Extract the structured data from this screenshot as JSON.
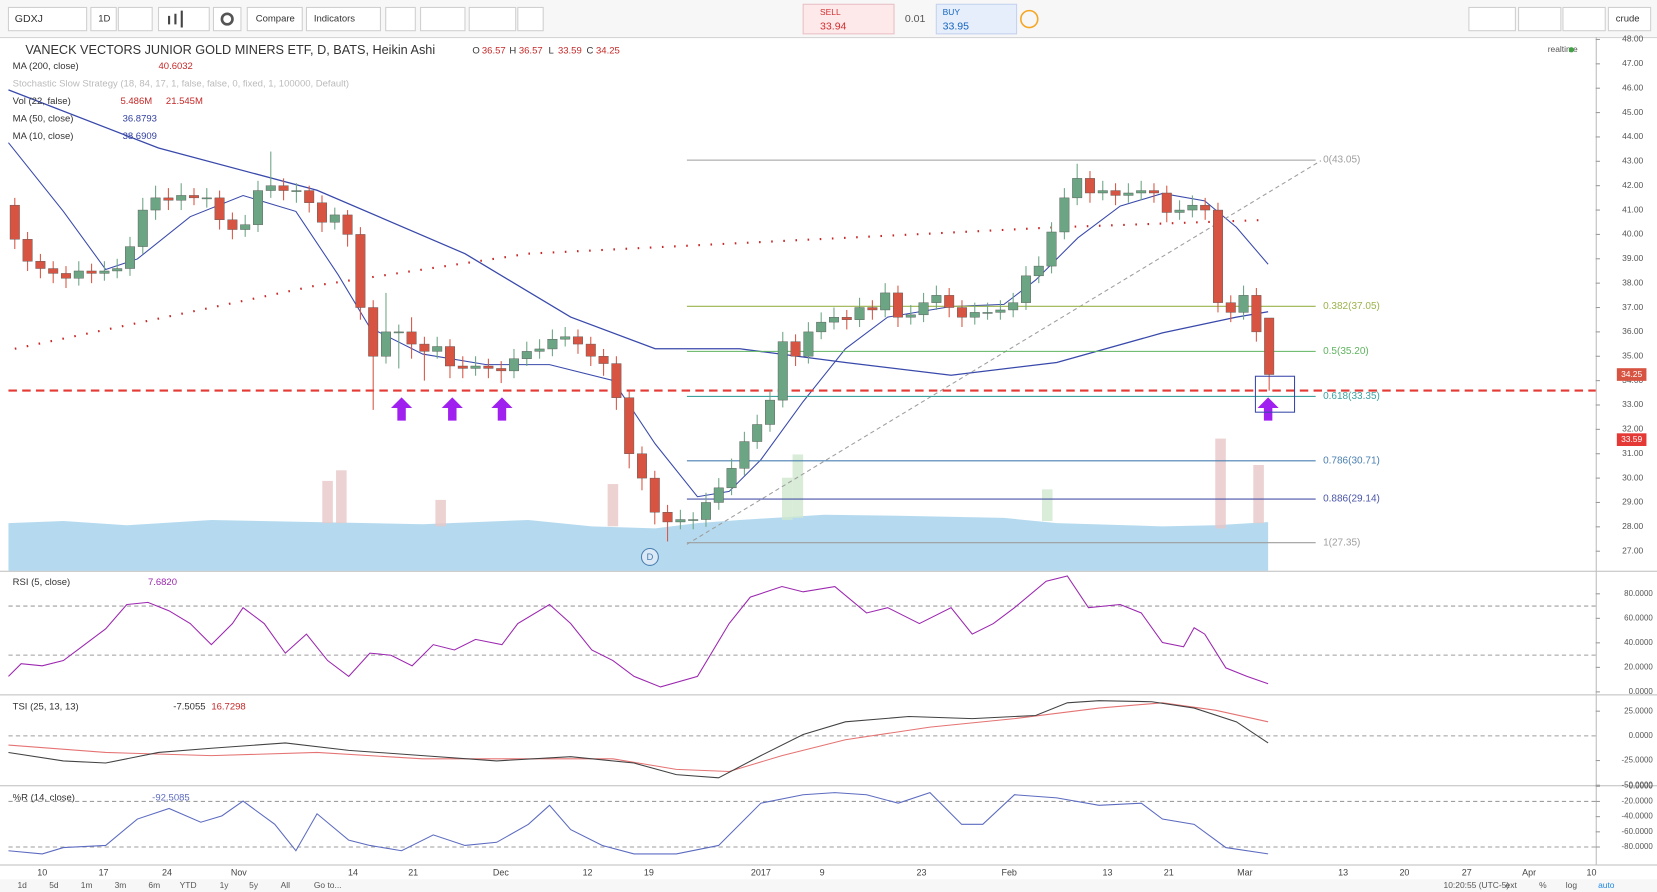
{
  "toolbar": {
    "symbol": "GDXJ",
    "interval": "1D",
    "compare": "Compare",
    "indicators": "Indicators",
    "sell": "SELL",
    "sell_price": 33.94,
    "spread": 0.01,
    "buy": "BUY",
    "buy_price": 33.95,
    "user": "crude"
  },
  "chart_data": {
    "type": "candlestick",
    "title": "VANECK VECTORS JUNIOR GOLD MINERS ETF, D, BATS, Heikin Ashi",
    "ohlc": [
      [
        "O",
        36.57
      ],
      [
        "H",
        36.57
      ],
      [
        "L",
        33.59
      ],
      [
        "C",
        34.25
      ]
    ],
    "realtime": "realtime",
    "studies": [
      {
        "name": "MA (200, close)",
        "values": [
          "40.6032"
        ],
        "color": "#c62828"
      },
      {
        "name": "Stochastic Slow Strategy (18, 84, 17, 1, false, false, 0, fixed, 1, 100000, Default)",
        "values": [],
        "color": "#bbbbbb"
      },
      {
        "name": "Vol (22, false)",
        "values": [
          "5.486M",
          "21.545M"
        ],
        "color": "#c62828"
      },
      {
        "name": "MA (50, close)",
        "values": [
          "36.8793"
        ],
        "color": "#303f9f"
      },
      {
        "name": "MA (10, close)",
        "values": [
          "38.6909"
        ],
        "color": "#303f9f"
      }
    ],
    "up_color": "#6ba583",
    "down_color": "#d75442",
    "ylim": [
      26.2,
      48.1
    ],
    "yticks": [
      {
        "value": 27,
        "label": "27.00"
      },
      {
        "value": 28,
        "label": "28.00"
      },
      {
        "value": 29,
        "label": "29.00"
      },
      {
        "value": 30,
        "label": "30.00"
      },
      {
        "value": 31,
        "label": "31.00"
      },
      {
        "value": 32,
        "label": "32.00"
      },
      {
        "value": 33,
        "label": "33.00"
      },
      {
        "value": 34,
        "label": "34.00"
      },
      {
        "value": 35,
        "label": "35.00"
      },
      {
        "value": 36,
        "label": "36.00"
      },
      {
        "value": 37,
        "label": "37.00"
      },
      {
        "value": 38,
        "label": "38.00"
      },
      {
        "value": 39,
        "label": "39.00"
      },
      {
        "value": 40,
        "label": "40.00"
      },
      {
        "value": 41,
        "label": "41.00"
      },
      {
        "value": 42,
        "label": "42.00"
      },
      {
        "value": 43,
        "label": "43.00"
      },
      {
        "value": 44,
        "label": "44.00"
      },
      {
        "value": 45,
        "label": "45.00"
      },
      {
        "value": 46,
        "label": "46.00"
      },
      {
        "value": 47,
        "label": "47.00"
      },
      {
        "value": 48,
        "label": "48.00"
      }
    ],
    "last_price": {
      "value": 34.25,
      "label": "34.25"
    },
    "low_badge": {
      "value": 33.59,
      "label": "33.59"
    },
    "support_line": 33.59,
    "candles": [
      [
        41.2,
        41.5,
        39.4,
        39.8
      ],
      [
        39.8,
        40.1,
        38.5,
        38.9
      ],
      [
        38.9,
        39.2,
        38.2,
        38.6
      ],
      [
        38.6,
        38.9,
        38.0,
        38.4
      ],
      [
        38.4,
        38.7,
        37.8,
        38.2
      ],
      [
        38.2,
        38.9,
        37.9,
        38.5
      ],
      [
        38.5,
        38.8,
        38.0,
        38.4
      ],
      [
        38.4,
        38.9,
        38.1,
        38.5
      ],
      [
        38.5,
        39.0,
        38.2,
        38.6
      ],
      [
        38.6,
        39.9,
        38.3,
        39.5
      ],
      [
        39.5,
        41.5,
        39.2,
        41.0
      ],
      [
        41.0,
        42.0,
        40.6,
        41.5
      ],
      [
        41.5,
        41.9,
        41.0,
        41.4
      ],
      [
        41.4,
        42.1,
        41.0,
        41.6
      ],
      [
        41.6,
        41.9,
        41.2,
        41.5
      ],
      [
        41.5,
        41.9,
        41.1,
        41.5
      ],
      [
        41.5,
        41.8,
        40.2,
        40.6
      ],
      [
        40.6,
        40.9,
        39.8,
        40.2
      ],
      [
        40.2,
        40.8,
        39.9,
        40.4
      ],
      [
        40.4,
        42.2,
        40.1,
        41.8
      ],
      [
        41.8,
        43.4,
        41.5,
        42.0
      ],
      [
        42.0,
        42.3,
        41.4,
        41.8
      ],
      [
        41.8,
        42.1,
        41.3,
        41.8
      ],
      [
        41.8,
        42.0,
        40.9,
        41.3
      ],
      [
        41.3,
        41.6,
        40.1,
        40.5
      ],
      [
        40.5,
        41.1,
        40.2,
        40.8
      ],
      [
        40.8,
        41.0,
        39.5,
        40.0
      ],
      [
        40.0,
        40.3,
        36.5,
        37.0
      ],
      [
        37.0,
        37.3,
        32.8,
        35.0
      ],
      [
        35.0,
        37.6,
        34.7,
        36.0
      ],
      [
        36.0,
        36.3,
        34.5,
        36.0
      ],
      [
        36.0,
        36.6,
        34.9,
        35.5
      ],
      [
        35.5,
        35.8,
        34.0,
        35.2
      ],
      [
        35.2,
        35.8,
        34.9,
        35.4
      ],
      [
        35.4,
        35.7,
        34.1,
        34.6
      ],
      [
        34.6,
        35.0,
        34.1,
        34.5
      ],
      [
        34.5,
        35.0,
        34.2,
        34.6
      ],
      [
        34.6,
        34.9,
        34.1,
        34.5
      ],
      [
        34.5,
        34.8,
        33.9,
        34.4
      ],
      [
        34.4,
        35.3,
        34.1,
        34.9
      ],
      [
        34.9,
        35.6,
        34.6,
        35.2
      ],
      [
        35.2,
        35.7,
        34.9,
        35.3
      ],
      [
        35.3,
        36.1,
        35.0,
        35.7
      ],
      [
        35.7,
        36.2,
        35.4,
        35.8
      ],
      [
        35.8,
        36.1,
        35.1,
        35.5
      ],
      [
        35.5,
        35.8,
        34.6,
        35.0
      ],
      [
        35.0,
        35.3,
        34.2,
        34.7
      ],
      [
        34.7,
        35.0,
        32.8,
        33.3
      ],
      [
        33.3,
        33.6,
        30.4,
        31.0
      ],
      [
        31.0,
        31.3,
        29.5,
        30.0
      ],
      [
        30.0,
        30.3,
        28.1,
        28.6
      ],
      [
        28.6,
        28.9,
        27.4,
        28.2
      ],
      [
        28.2,
        28.7,
        27.9,
        28.3
      ],
      [
        28.3,
        28.6,
        27.9,
        28.3
      ],
      [
        28.3,
        29.4,
        28.0,
        29.0
      ],
      [
        29.0,
        30.0,
        28.7,
        29.6
      ],
      [
        29.6,
        30.8,
        29.3,
        30.4
      ],
      [
        30.4,
        31.9,
        30.1,
        31.5
      ],
      [
        31.5,
        32.6,
        31.2,
        32.2
      ],
      [
        32.2,
        33.6,
        31.9,
        33.2
      ],
      [
        33.2,
        36.0,
        32.9,
        35.6
      ],
      [
        35.6,
        35.9,
        34.6,
        35.0
      ],
      [
        35.0,
        36.4,
        34.7,
        36.0
      ],
      [
        36.0,
        36.8,
        35.7,
        36.4
      ],
      [
        36.4,
        37.0,
        36.1,
        36.6
      ],
      [
        36.6,
        36.9,
        36.1,
        36.5
      ],
      [
        36.5,
        37.4,
        36.2,
        37.0
      ],
      [
        37.0,
        37.3,
        36.5,
        36.9
      ],
      [
        36.9,
        38.0,
        36.6,
        37.6
      ],
      [
        37.6,
        37.9,
        36.2,
        36.6
      ],
      [
        36.6,
        37.1,
        36.3,
        36.7
      ],
      [
        36.7,
        37.6,
        36.4,
        37.2
      ],
      [
        37.2,
        37.9,
        36.9,
        37.5
      ],
      [
        37.5,
        37.8,
        36.6,
        37.0
      ],
      [
        37.0,
        37.3,
        36.2,
        36.6
      ],
      [
        36.6,
        37.2,
        36.3,
        36.8
      ],
      [
        36.8,
        37.2,
        36.5,
        36.8
      ],
      [
        36.8,
        37.3,
        36.5,
        36.9
      ],
      [
        36.9,
        37.6,
        36.6,
        37.2
      ],
      [
        37.2,
        38.7,
        36.9,
        38.3
      ],
      [
        38.3,
        39.1,
        38.0,
        38.7
      ],
      [
        38.7,
        40.5,
        38.4,
        40.1
      ],
      [
        40.1,
        41.9,
        39.8,
        41.5
      ],
      [
        41.5,
        42.9,
        41.2,
        42.3
      ],
      [
        42.3,
        42.6,
        41.3,
        41.7
      ],
      [
        41.7,
        42.2,
        41.4,
        41.8
      ],
      [
        41.8,
        42.1,
        41.2,
        41.6
      ],
      [
        41.6,
        42.1,
        41.3,
        41.7
      ],
      [
        41.7,
        42.2,
        41.4,
        41.8
      ],
      [
        41.8,
        42.1,
        41.3,
        41.7
      ],
      [
        41.7,
        42.0,
        40.5,
        40.9
      ],
      [
        40.9,
        41.4,
        40.6,
        41.0
      ],
      [
        41.0,
        41.6,
        40.7,
        41.2
      ],
      [
        41.2,
        41.5,
        40.6,
        41.0
      ],
      [
        41.0,
        41.3,
        36.8,
        37.2
      ],
      [
        37.2,
        37.5,
        36.4,
        36.8
      ],
      [
        36.8,
        37.9,
        36.5,
        37.5
      ],
      [
        37.5,
        37.8,
        35.6,
        36.0
      ],
      [
        36.57,
        36.57,
        33.59,
        34.25
      ]
    ],
    "fib": [
      {
        "label": "0(43.05)",
        "value": 43.05,
        "color": "#9e9e9e"
      },
      {
        "label": "0.382(37.05)",
        "value": 37.05,
        "color": "#9ab34d"
      },
      {
        "label": "0.5(35.20)",
        "value": 35.2,
        "color": "#5fb35f"
      },
      {
        "label": "0.618(33.35)",
        "value": 33.35,
        "color": "#3fa0a0"
      },
      {
        "label": "0.786(30.71)",
        "value": 30.71,
        "color": "#4a7fb0"
      },
      {
        "label": "0.886(29.14)",
        "value": 29.14,
        "color": "#4a55a8"
      },
      {
        "label": "1(27.35)",
        "value": 27.35,
        "color": "#9e9e9e"
      }
    ],
    "dividend_marker": "D",
    "xlabels": [
      "10",
      "17",
      "24",
      "Nov",
      "14",
      "21",
      "Dec",
      "12",
      "19",
      "2017",
      "9",
      "23",
      "Feb",
      "13",
      "21",
      "Mar",
      "13",
      "20",
      "27",
      "Apr",
      "10"
    ]
  },
  "rsi": {
    "name": "RSI (5, close)",
    "value": "7.6820",
    "ylim": [
      -2,
      98
    ],
    "bands": [
      30,
      70
    ],
    "yticks": [
      {
        "value": 0,
        "label": "0.0000"
      },
      {
        "value": 20,
        "label": "20.0000"
      },
      {
        "value": 40,
        "label": "40.0000"
      },
      {
        "value": 60,
        "label": "60.0000"
      },
      {
        "value": 80,
        "label": "80.0000"
      }
    ]
  },
  "tsi": {
    "name": "TSI (25, 13, 13)",
    "values": [
      "-7.5055",
      "16.7298"
    ],
    "ylim": [
      -50,
      41
    ],
    "yticks": [
      {
        "value": 25,
        "label": "25.0000"
      },
      {
        "value": 0,
        "label": "0.0000"
      },
      {
        "value": -25,
        "label": "-25.0000"
      },
      {
        "value": -50,
        "label": "-50.0000"
      }
    ]
  },
  "willr": {
    "name": "%R (14, close)",
    "value": "-92.5085",
    "ylim": [
      -103,
      0
    ],
    "bands": [
      -80,
      -20
    ],
    "yticks": [
      {
        "value": 0,
        "label": "0.0000"
      },
      {
        "value": -20,
        "label": "-20.0000"
      },
      {
        "value": -40,
        "label": "-40.0000"
      },
      {
        "value": -60,
        "label": "-60.0000"
      },
      {
        "value": -80,
        "label": "-80.0000"
      }
    ]
  },
  "bottom_bar": {
    "ranges": [
      "1d",
      "5d",
      "1m",
      "3m",
      "6m",
      "YTD",
      "1y",
      "5y",
      "All"
    ],
    "goto": "Go to...",
    "clock": "10:20:55 (UTC-5)",
    "options": [
      "ext",
      "%",
      "log",
      "auto"
    ]
  }
}
